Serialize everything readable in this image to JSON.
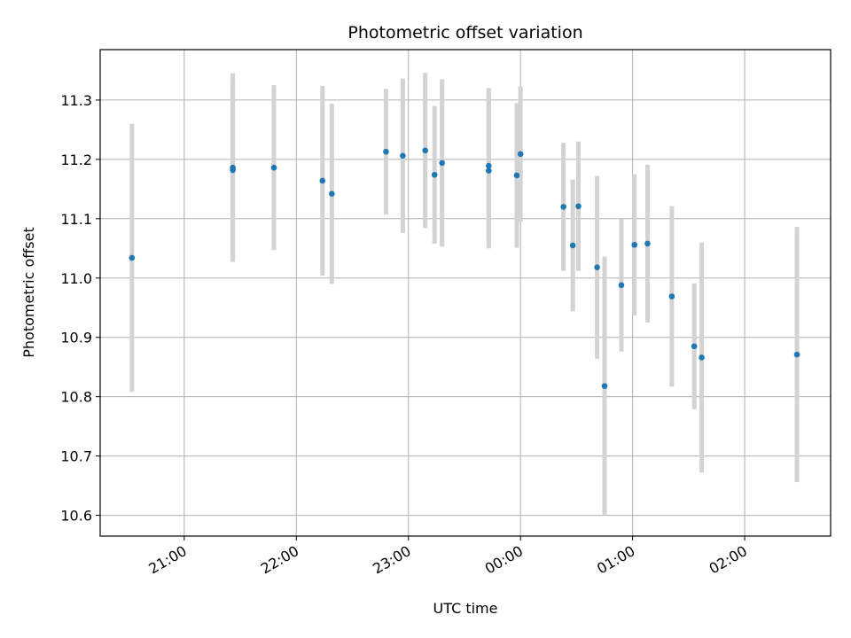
{
  "chart_data": {
    "type": "scatter",
    "title": "Photometric offset variation",
    "xlabel": "UTC time",
    "ylabel": "Photometric offset",
    "x_tick_labels": [
      "21:00",
      "22:00",
      "23:00",
      "00:00",
      "01:00",
      "02:00"
    ],
    "y_tick_labels": [
      "10.6",
      "10.7",
      "10.8",
      "10.9",
      "11.0",
      "11.1",
      "11.2",
      "11.3"
    ],
    "y_ticks": [
      10.6,
      10.7,
      10.8,
      10.9,
      11.0,
      11.1,
      11.2,
      11.3
    ],
    "xlim": [
      "20:15",
      "02:46"
    ],
    "ylim": [
      10.565,
      11.385
    ],
    "grid": true,
    "point_color": "#1f77b4",
    "errorbar_color": "#d3d3d3",
    "points": [
      {
        "x": "20:32",
        "y": 11.034,
        "err": 0.226
      },
      {
        "x": "21:26",
        "y": 11.182,
        "err": 0.148
      },
      {
        "x": "21:26",
        "y": 11.186,
        "err": 0.159
      },
      {
        "x": "21:48",
        "y": 11.186,
        "err": 0.139
      },
      {
        "x": "22:14",
        "y": 11.164,
        "err": 0.16
      },
      {
        "x": "22:19",
        "y": 11.142,
        "err": 0.152
      },
      {
        "x": "22:48",
        "y": 11.213,
        "err": 0.106
      },
      {
        "x": "22:57",
        "y": 11.206,
        "err": 0.13
      },
      {
        "x": "23:09",
        "y": 11.215,
        "err": 0.131
      },
      {
        "x": "23:14",
        "y": 11.174,
        "err": 0.116
      },
      {
        "x": "23:18",
        "y": 11.194,
        "err": 0.141
      },
      {
        "x": "23:43",
        "y": 11.181,
        "err": 0.131
      },
      {
        "x": "23:43",
        "y": 11.189,
        "err": 0.131
      },
      {
        "x": "23:58",
        "y": 11.173,
        "err": 0.122
      },
      {
        "x": "00:00",
        "y": 11.209,
        "err": 0.114
      },
      {
        "x": "00:23",
        "y": 11.12,
        "err": 0.108
      },
      {
        "x": "00:28",
        "y": 11.055,
        "err": 0.111
      },
      {
        "x": "00:31",
        "y": 11.121,
        "err": 0.109
      },
      {
        "x": "00:41",
        "y": 11.018,
        "err": 0.154
      },
      {
        "x": "00:45",
        "y": 10.818,
        "err": 0.218
      },
      {
        "x": "00:54",
        "y": 10.988,
        "err": 0.112
      },
      {
        "x": "01:01",
        "y": 11.056,
        "err": 0.119
      },
      {
        "x": "01:08",
        "y": 11.058,
        "err": 0.133
      },
      {
        "x": "01:21",
        "y": 10.969,
        "err": 0.152
      },
      {
        "x": "01:33",
        "y": 10.885,
        "err": 0.106
      },
      {
        "x": "01:37",
        "y": 10.866,
        "err": 0.194
      },
      {
        "x": "02:28",
        "y": 10.871,
        "err": 0.215
      }
    ]
  }
}
